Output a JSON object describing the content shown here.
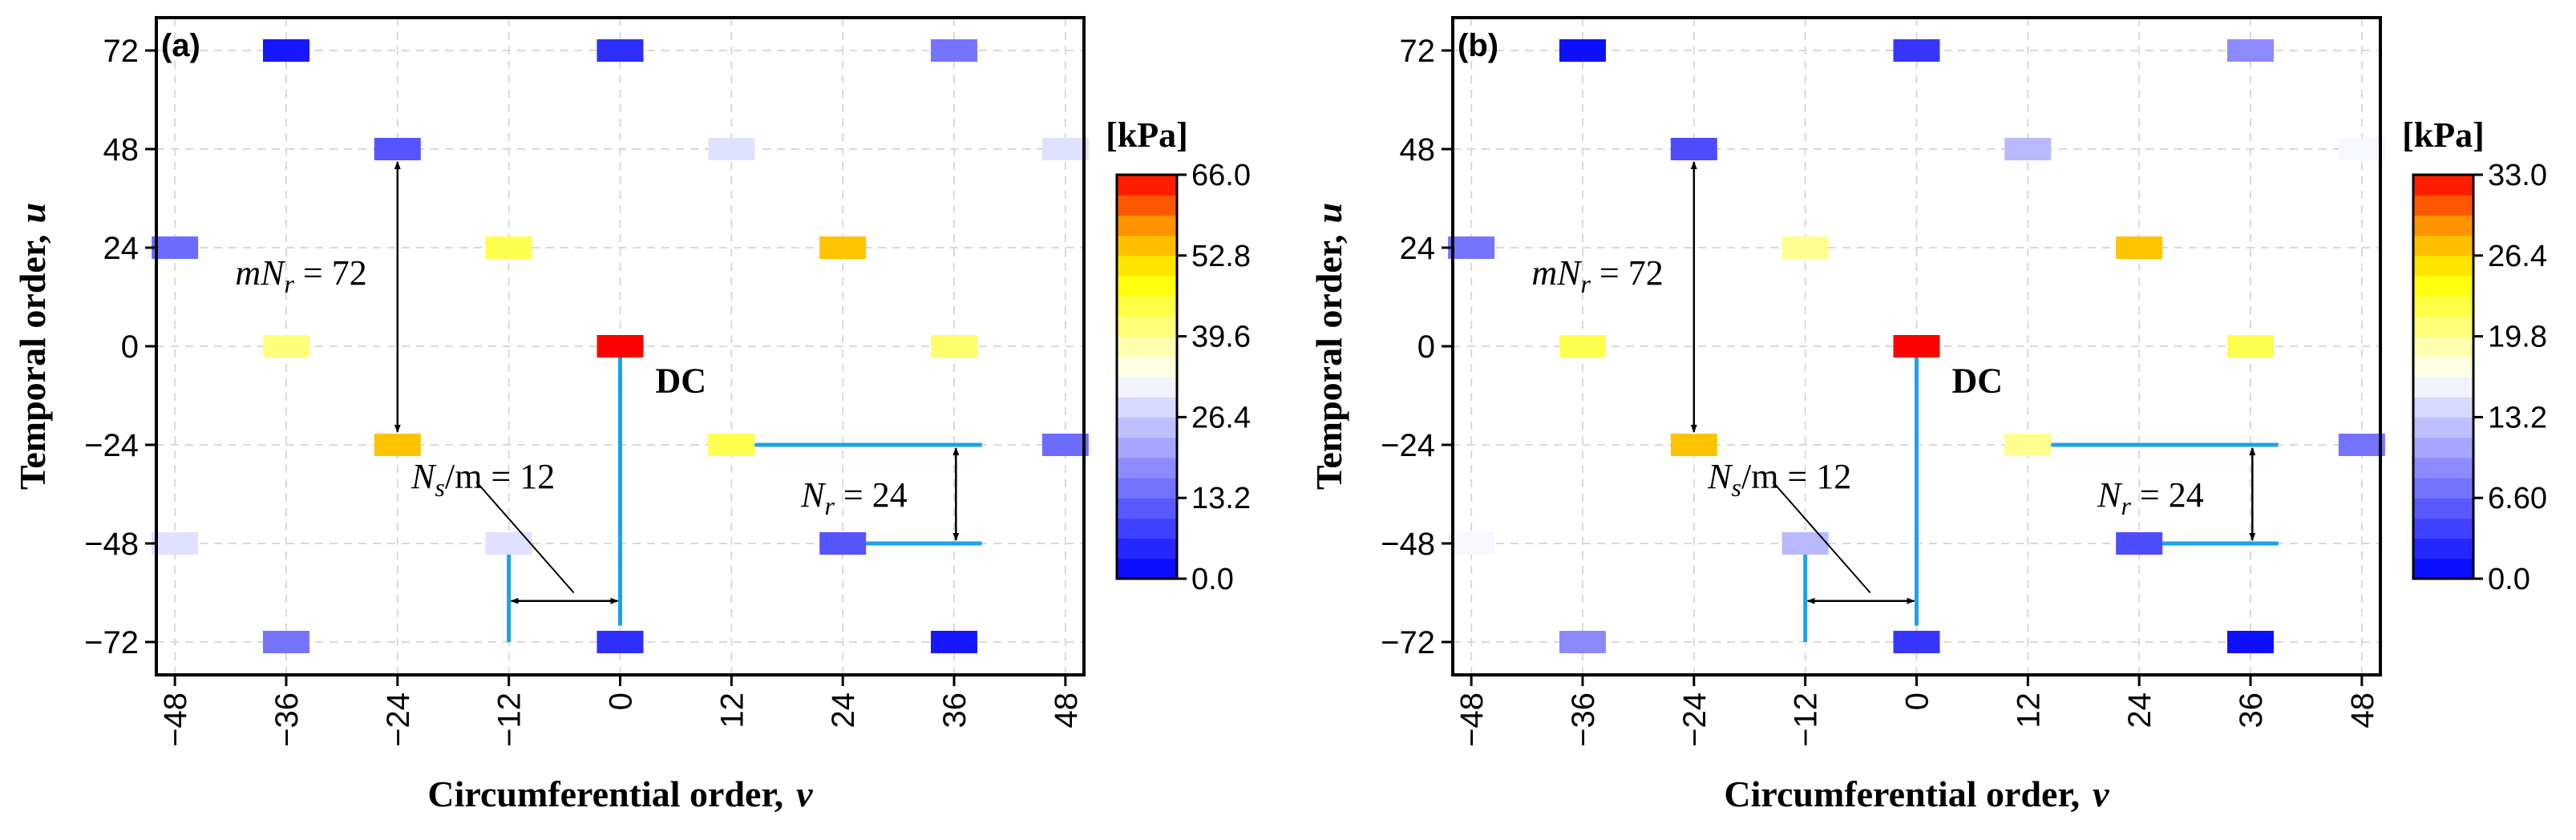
{
  "chart_data": [
    {
      "type": "heatmap",
      "panel_label": "(a)",
      "xlabel": "Circumferential order,",
      "xlabel_var": "v",
      "ylabel": "Temporal order,",
      "ylabel_var": "u",
      "xticks": [
        "−48",
        "−36",
        "−24",
        "−12",
        "0",
        "12",
        "24",
        "36",
        "48"
      ],
      "xtick_values": [
        -48,
        -36,
        -24,
        -12,
        0,
        12,
        24,
        36,
        48
      ],
      "yticks": [
        "72",
        "48",
        "24",
        "0",
        "−24",
        "−48",
        "−72"
      ],
      "ytick_values": [
        72,
        48,
        24,
        0,
        -24,
        -48,
        -72
      ],
      "xlim": [
        -50,
        50
      ],
      "ylim": [
        -80,
        80
      ],
      "grid": true,
      "colorbar": {
        "unit": "[kPa]",
        "min": 0,
        "max": 66,
        "ticks": [
          "66.0",
          "52.8",
          "39.6",
          "26.4",
          "13.2",
          "0.0"
        ],
        "tick_values": [
          66,
          52.8,
          39.6,
          26.4,
          13.2,
          0
        ]
      },
      "points": [
        {
          "v": -36,
          "u": 72,
          "value": 3
        },
        {
          "v": 0,
          "u": 72,
          "value": 6
        },
        {
          "v": 36,
          "u": 72,
          "value": 15
        },
        {
          "v": -24,
          "u": 48,
          "value": 11
        },
        {
          "v": 12,
          "u": 48,
          "value": 29
        },
        {
          "v": 48,
          "u": 48,
          "value": 29
        },
        {
          "v": -48,
          "u": 24,
          "value": 14
        },
        {
          "v": -12,
          "u": 24,
          "value": 44
        },
        {
          "v": 24,
          "u": 24,
          "value": 54
        },
        {
          "v": -36,
          "u": 0,
          "value": 41
        },
        {
          "v": 0,
          "u": 0,
          "value": 66
        },
        {
          "v": 36,
          "u": 0,
          "value": 42
        },
        {
          "v": -24,
          "u": -24,
          "value": 54
        },
        {
          "v": 12,
          "u": -24,
          "value": 44
        },
        {
          "v": 48,
          "u": -24,
          "value": 14
        },
        {
          "v": -48,
          "u": -48,
          "value": 29
        },
        {
          "v": -12,
          "u": -48,
          "value": 29
        },
        {
          "v": 24,
          "u": -48,
          "value": 11
        },
        {
          "v": -36,
          "u": -72,
          "value": 15
        },
        {
          "v": 0,
          "u": -72,
          "value": 6
        },
        {
          "v": 36,
          "u": -72,
          "value": 3
        }
      ],
      "annotations": {
        "dc": "DC",
        "mnr_prefix": "mN",
        "mnr_sub": "r",
        "mnr_suffix": " = 72",
        "ns_prefix": "N",
        "ns_sub": "s",
        "ns_suffix": "/m = 12",
        "nr_prefix": "N",
        "nr_sub": "r",
        "nr_suffix": " = 24"
      }
    },
    {
      "type": "heatmap",
      "panel_label": "(b)",
      "xlabel": "Circumferential order,",
      "xlabel_var": "v",
      "ylabel": "Temporal order,",
      "ylabel_var": "u",
      "xticks": [
        "−48",
        "−36",
        "−24",
        "−12",
        "0",
        "12",
        "24",
        "36",
        "48"
      ],
      "xtick_values": [
        -48,
        -36,
        -24,
        -12,
        0,
        12,
        24,
        36,
        48
      ],
      "yticks": [
        "72",
        "48",
        "24",
        "0",
        "−24",
        "−48",
        "−72"
      ],
      "ytick_values": [
        72,
        48,
        24,
        0,
        -24,
        -48,
        -72
      ],
      "xlim": [
        -50,
        50
      ],
      "ylim": [
        -80,
        80
      ],
      "grid": true,
      "colorbar": {
        "unit": "[kPa]",
        "min": 0,
        "max": 33,
        "ticks": [
          "33.0",
          "26.4",
          "19.8",
          "13.2",
          "6.60",
          "0.0"
        ],
        "tick_values": [
          33,
          26.4,
          19.8,
          13.2,
          6.6,
          0
        ]
      },
      "points": [
        {
          "v": -36,
          "u": 72,
          "value": 1
        },
        {
          "v": 0,
          "u": 72,
          "value": 3.5
        },
        {
          "v": 36,
          "u": 72,
          "value": 9
        },
        {
          "v": -24,
          "u": 48,
          "value": 5
        },
        {
          "v": 12,
          "u": 48,
          "value": 12
        },
        {
          "v": 48,
          "u": 48,
          "value": 16
        },
        {
          "v": -48,
          "u": 24,
          "value": 7.5
        },
        {
          "v": -12,
          "u": 24,
          "value": 20
        },
        {
          "v": 24,
          "u": 24,
          "value": 27
        },
        {
          "v": -36,
          "u": 0,
          "value": 22
        },
        {
          "v": 0,
          "u": 0,
          "value": 33
        },
        {
          "v": 36,
          "u": 0,
          "value": 22
        },
        {
          "v": -24,
          "u": -24,
          "value": 27
        },
        {
          "v": 12,
          "u": -24,
          "value": 20
        },
        {
          "v": 48,
          "u": -24,
          "value": 7.5
        },
        {
          "v": -48,
          "u": -48,
          "value": 16
        },
        {
          "v": -12,
          "u": -48,
          "value": 12
        },
        {
          "v": 24,
          "u": -48,
          "value": 5
        },
        {
          "v": -36,
          "u": -72,
          "value": 9
        },
        {
          "v": 0,
          "u": -72,
          "value": 3.5
        },
        {
          "v": 36,
          "u": -72,
          "value": 1
        }
      ],
      "annotations": {
        "dc": "DC",
        "mnr_prefix": "mN",
        "mnr_sub": "r",
        "mnr_suffix": " = 72",
        "ns_prefix": "N",
        "ns_sub": "s",
        "ns_suffix": "/m = 12",
        "nr_prefix": "N",
        "nr_sub": "r",
        "nr_suffix": " = 24"
      }
    }
  ],
  "colors": {
    "annotation_line": "#1aa3e8",
    "arrow": "#000000",
    "grid": "#d9d9d9",
    "colormap": [
      "#0000ff",
      "#ffffff",
      "#ffff00",
      "#ffa500",
      "#ff0000"
    ]
  }
}
